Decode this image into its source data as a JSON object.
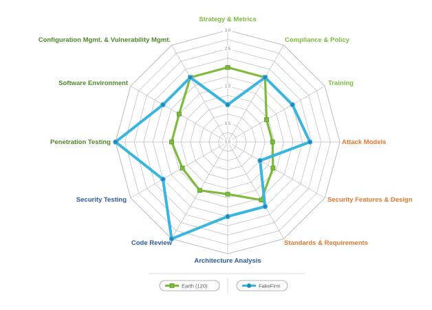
{
  "chart_data": {
    "type": "radar",
    "axes": [
      {
        "label": "Strategy & Metrics",
        "color": "#7dbb3c"
      },
      {
        "label": "Compliance & Policy",
        "color": "#7dbb3c"
      },
      {
        "label": "Training",
        "color": "#7dbb3c"
      },
      {
        "label": "Attack Models",
        "color": "#e8762d"
      },
      {
        "label": "Security Features & Design",
        "color": "#e8762d"
      },
      {
        "label": "Standards & Requirements",
        "color": "#e8762d"
      },
      {
        "label": "Architecture Analysis",
        "color": "#2d5aa0"
      },
      {
        "label": "Code Review",
        "color": "#2d5aa0"
      },
      {
        "label": "Security Testing",
        "color": "#2d5aa0"
      },
      {
        "label": "Penetration Testing",
        "color": "#4f8a2a"
      },
      {
        "label": "Software Environment",
        "color": "#4f8a2a"
      },
      {
        "label": "Configuration Mgmt. & Vulnerability Mgmt.",
        "color": "#4f8a2a"
      }
    ],
    "rlim": [
      0,
      3.0
    ],
    "ticks": [
      "0.0",
      "0.5",
      "1.0",
      "1.5",
      "2.0",
      "2.5",
      "3.0"
    ],
    "grid": true,
    "legend_position": "bottom",
    "series": [
      {
        "name": "Earth (120)",
        "color": "#7dbb3c",
        "marker": "square",
        "values": [
          2.0,
          2.0,
          1.2,
          1.2,
          1.4,
          1.8,
          1.4,
          1.5,
          1.4,
          1.5,
          1.5,
          2.0
        ]
      },
      {
        "name": "FakeFirm",
        "color": "#39b5e0",
        "marker": "circle",
        "values": [
          1.0,
          2.0,
          2.0,
          2.2,
          1.0,
          2.0,
          2.0,
          3.0,
          2.0,
          3.0,
          2.0,
          2.0
        ]
      }
    ]
  }
}
